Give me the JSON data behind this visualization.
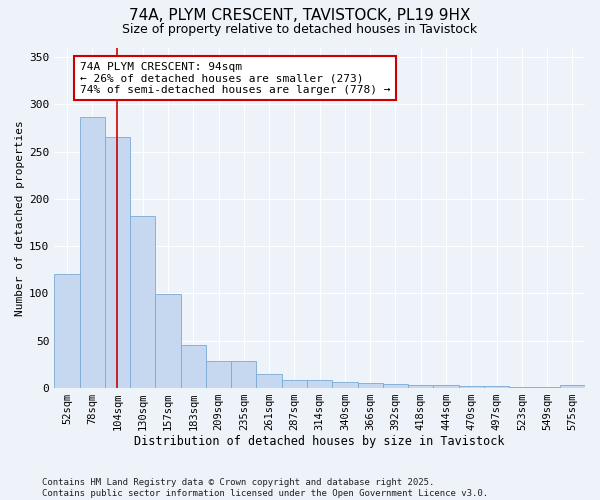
{
  "title1": "74A, PLYM CRESCENT, TAVISTOCK, PL19 9HX",
  "title2": "Size of property relative to detached houses in Tavistock",
  "xlabel": "Distribution of detached houses by size in Tavistock",
  "ylabel": "Number of detached properties",
  "categories": [
    "52sqm",
    "78sqm",
    "104sqm",
    "130sqm",
    "157sqm",
    "183sqm",
    "209sqm",
    "235sqm",
    "261sqm",
    "287sqm",
    "314sqm",
    "340sqm",
    "366sqm",
    "392sqm",
    "418sqm",
    "444sqm",
    "470sqm",
    "497sqm",
    "523sqm",
    "549sqm",
    "575sqm"
  ],
  "values": [
    120,
    287,
    265,
    182,
    99,
    45,
    28,
    28,
    15,
    8,
    8,
    6,
    5,
    4,
    3,
    3,
    2,
    2,
    1,
    1,
    3
  ],
  "bar_color": "#c5d8f0",
  "bar_edge_color": "#7aaad4",
  "red_line_x": 2.0,
  "annotation_text": "74A PLYM CRESCENT: 94sqm\n← 26% of detached houses are smaller (273)\n74% of semi-detached houses are larger (778) →",
  "annotation_box_color": "white",
  "annotation_box_edge_color": "#cc0000",
  "red_line_color": "#cc0000",
  "bg_color": "#eef2f9",
  "grid_color": "white",
  "ylim": [
    0,
    360
  ],
  "yticks": [
    0,
    50,
    100,
    150,
    200,
    250,
    300,
    350
  ],
  "title1_fontsize": 11,
  "title2_fontsize": 9,
  "footnote": "Contains HM Land Registry data © Crown copyright and database right 2025.\nContains public sector information licensed under the Open Government Licence v3.0."
}
